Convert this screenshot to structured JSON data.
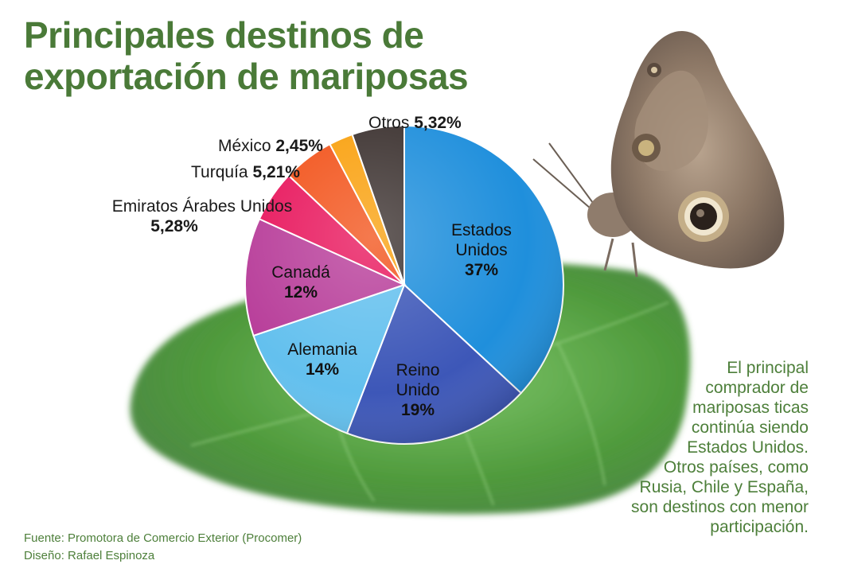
{
  "header": {
    "title_line1": "Principales destinos de",
    "title_line2": "exportación de mariposas"
  },
  "chart_data": {
    "type": "pie",
    "title": "Principales destinos de exportación de mariposas",
    "slices": [
      {
        "label": "Estados Unidos",
        "value": 37,
        "display": "37%",
        "color": "#1f8fdc"
      },
      {
        "label": "Reino Unido",
        "value": 19,
        "display": "19%",
        "color": "#3d57b8"
      },
      {
        "label": "Alemania",
        "value": 14,
        "display": "14%",
        "color": "#63c0ee"
      },
      {
        "label": "Canadá",
        "value": 12,
        "display": "12%",
        "color": "#b83e9a"
      },
      {
        "label": "Emiratos Árabes Unidos",
        "value": 5.28,
        "display": "5,28%",
        "color": "#e8175d"
      },
      {
        "label": "Turquía",
        "value": 5.21,
        "display": "5,21%",
        "color": "#f2541c"
      },
      {
        "label": "México",
        "value": 2.45,
        "display": "2,45%",
        "color": "#f9a10f"
      },
      {
        "label": "Otros",
        "value": 5.32,
        "display": "5,32%",
        "color": "#3c3230"
      }
    ]
  },
  "labels": {
    "estados_unidos_line1": "Estados",
    "estados_unidos_line2": "Unidos",
    "reino_unido_line1": "Reino",
    "reino_unido_line2": "Unido",
    "alemania": "Alemania",
    "canada": "Canadá",
    "emiratos": "Emiratos Árabes Unidos",
    "turquia": "Turquía",
    "mexico": "México",
    "otros": "Otros"
  },
  "note": {
    "lines": [
      "El principal",
      "comprador de",
      "mariposas ticas",
      "continúa siendo",
      "Estados Unidos.",
      "Otros países, como",
      "Rusia, Chile y España,",
      "son destinos con menor",
      "participación."
    ]
  },
  "credits": {
    "source": "Fuente: Promotora de Comercio Exterior (Procomer)",
    "design": "Diseño: Rafael Espinoza"
  },
  "colors": {
    "title": "#4a7a38",
    "note": "#4d7f3a",
    "leaf": "#4f9a3c"
  }
}
